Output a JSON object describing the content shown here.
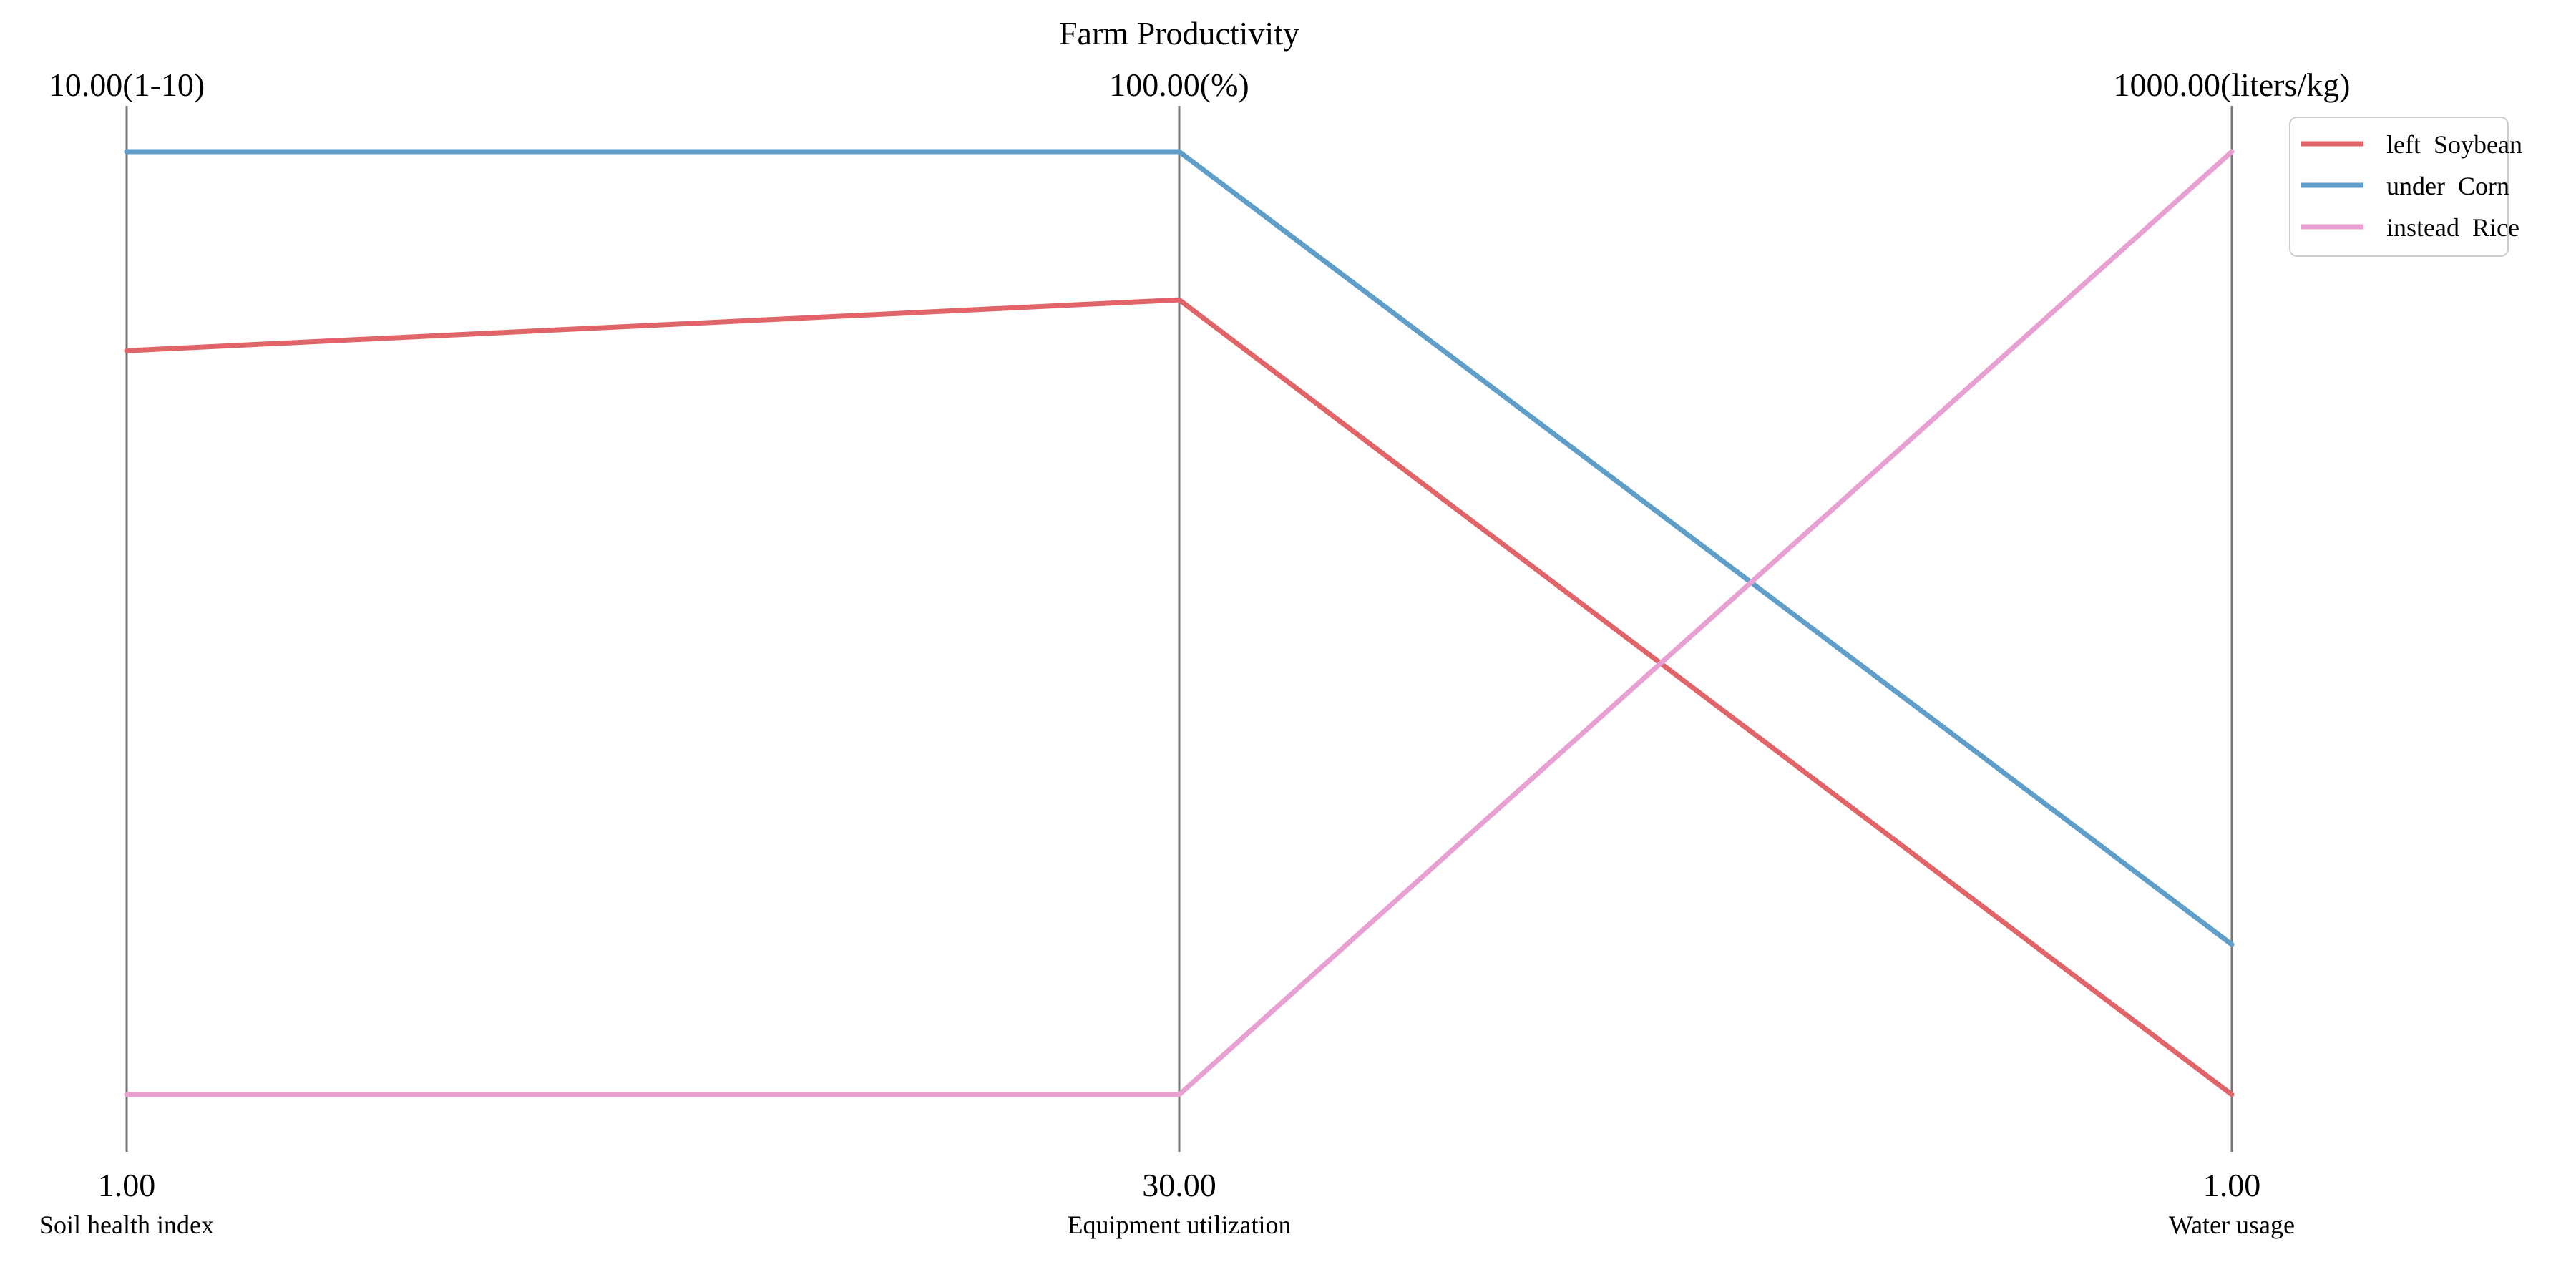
{
  "chart_data": {
    "type": "parallel-coordinates",
    "title": "Farm Productivity",
    "axes": [
      {
        "name": "Soil health index",
        "min": 1,
        "max": 10,
        "min_label": "1.00",
        "max_label": "10.00(1-10)"
      },
      {
        "name": "Equipment utilization",
        "min": 30,
        "max": 100,
        "min_label": "30.00",
        "max_label": "100.00(%)"
      },
      {
        "name": "Water usage",
        "min": 1,
        "max": 1000,
        "min_label": "1.00",
        "max_label": "1000.00(liters/kg)"
      }
    ],
    "series": [
      {
        "name": "left  Soybean",
        "color": "#e06468",
        "values": [
          8.1,
          89,
          1
        ]
      },
      {
        "name": "under  Corn",
        "color": "#5e9ec9",
        "values": [
          10,
          100,
          160
        ]
      },
      {
        "name": "instead  Rice",
        "color": "#e89fd1",
        "values": [
          1,
          30,
          1000
        ]
      }
    ],
    "legend_position": "top-right",
    "grid": false
  }
}
